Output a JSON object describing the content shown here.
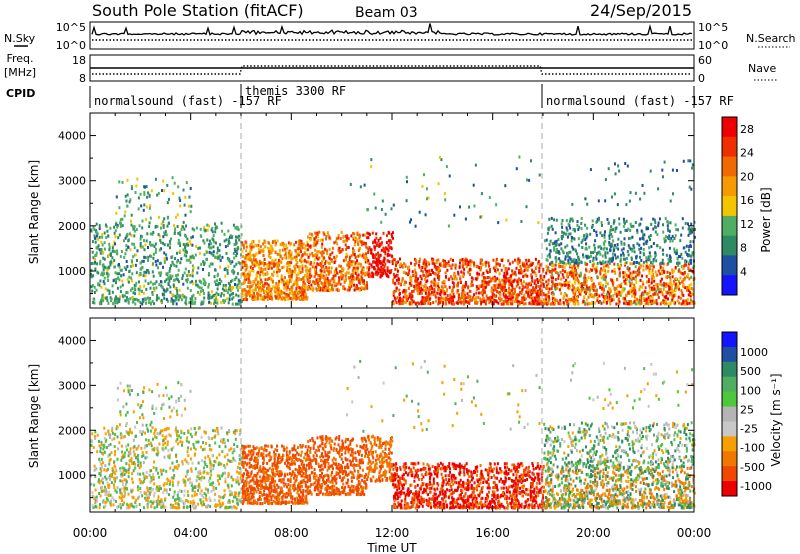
{
  "header": {
    "station": "South Pole Station (fitACF)",
    "beam": "Beam 03",
    "date": "24/Sep/2015"
  },
  "side_labels": {
    "nsky": "N.Sky",
    "freq_line1": "Freq.",
    "freq_line2": "[MHz]",
    "cpid": "CPID",
    "nsearch": "N.Search",
    "nave": "Nave"
  },
  "noise_panel": {
    "left_ticks": [
      "10^5",
      "10^0"
    ],
    "right_ticks": [
      "10^5",
      "10^0"
    ]
  },
  "freq_panel": {
    "left_ticks": [
      "18",
      "8"
    ],
    "right_ticks": [
      "60",
      "0"
    ]
  },
  "cpid_panel": {
    "segments": [
      {
        "label": "normalsound (fast) -157 RF",
        "start_h": 0,
        "end_h": 6
      },
      {
        "label": "themis 3300 RF",
        "start_h": 6,
        "end_h": 18
      },
      {
        "label": "normalsound (fast) -157 RF",
        "start_h": 18,
        "end_h": 24
      }
    ]
  },
  "colors": {
    "power": [
      "#1414ff",
      "#1e4fa3",
      "#2e8a63",
      "#4fae62",
      "#f5c400",
      "#f59b00",
      "#f06a00",
      "#ee3000",
      "#ee0000"
    ],
    "velocity": [
      "#1414ff",
      "#1e4fa3",
      "#2e8a63",
      "#4fae62",
      "#4cc83a",
      "#b4b4b4",
      "#c8c8c8",
      "#f5a000",
      "#f07800",
      "#f04800",
      "#ee0000"
    ]
  },
  "chart_data": [
    {
      "type": "heatmap",
      "name": "power",
      "title": "",
      "xlabel": "",
      "ylabel": "Slant Range [km]",
      "xlim": [
        0,
        24
      ],
      "ylim": [
        180,
        4500
      ],
      "xticks": [
        "00:00",
        "04:00",
        "08:00",
        "12:00",
        "16:00",
        "20:00",
        "00:00"
      ],
      "yticks": [
        1000,
        2000,
        3000,
        4000
      ],
      "colorbar": {
        "label": "Power [dB]",
        "ticks": [
          "4",
          "8",
          "12",
          "16",
          "20",
          "24",
          "28"
        ],
        "range": [
          0,
          30
        ]
      },
      "dashed_lines_h": [
        6,
        18
      ]
    },
    {
      "type": "heatmap",
      "name": "velocity",
      "title": "",
      "xlabel": "Time UT",
      "ylabel": "Slant Range [km]",
      "xlim": [
        0,
        24
      ],
      "ylim": [
        180,
        4500
      ],
      "xticks": [
        "00:00",
        "04:00",
        "08:00",
        "12:00",
        "16:00",
        "20:00",
        "00:00"
      ],
      "yticks": [
        1000,
        2000,
        3000,
        4000
      ],
      "colorbar": {
        "label": "Velocity [m s⁻¹]",
        "ticks": [
          "1000",
          "500",
          "100",
          "25",
          "-25",
          "-100",
          "-500",
          "-1000"
        ],
        "range": [
          -1000,
          1000
        ]
      },
      "dashed_lines_h": [
        6,
        18
      ]
    }
  ]
}
